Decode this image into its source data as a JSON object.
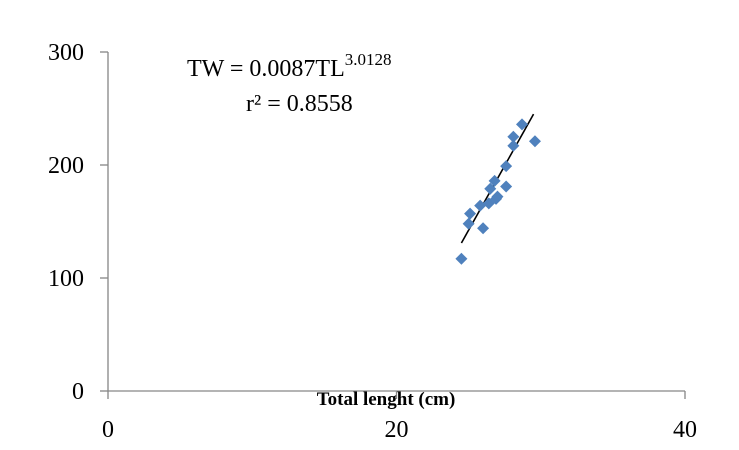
{
  "chart_data": {
    "type": "scatter",
    "title": "",
    "xlabel": "Total lenght (cm)",
    "ylabel": "",
    "xlim": [
      0,
      40
    ],
    "ylim": [
      0,
      300
    ],
    "x_ticks": [
      "0",
      "20",
      "40"
    ],
    "y_ticks": [
      "0",
      "100",
      "200",
      "300"
    ],
    "grid": false,
    "legend": "none",
    "marker": "diamond",
    "marker_color": "#4f81bd",
    "trendline_color": "#000000",
    "points": [
      {
        "x": 24.5,
        "y": 117
      },
      {
        "x": 25.0,
        "y": 148
      },
      {
        "x": 25.1,
        "y": 157
      },
      {
        "x": 25.8,
        "y": 164
      },
      {
        "x": 26.0,
        "y": 144
      },
      {
        "x": 26.4,
        "y": 166
      },
      {
        "x": 26.5,
        "y": 179
      },
      {
        "x": 26.8,
        "y": 186
      },
      {
        "x": 26.9,
        "y": 170
      },
      {
        "x": 27.0,
        "y": 172
      },
      {
        "x": 27.6,
        "y": 181
      },
      {
        "x": 27.6,
        "y": 199
      },
      {
        "x": 28.1,
        "y": 225
      },
      {
        "x": 28.1,
        "y": 217
      },
      {
        "x": 28.7,
        "y": 236
      },
      {
        "x": 29.6,
        "y": 221
      }
    ],
    "trendline": {
      "x": [
        24.5,
        29.5
      ],
      "y": [
        131,
        245
      ]
    },
    "equation": {
      "prefix": "TW = 0.0087TL",
      "exponent": "3.0128",
      "r2": "r² = 0.8558"
    }
  }
}
